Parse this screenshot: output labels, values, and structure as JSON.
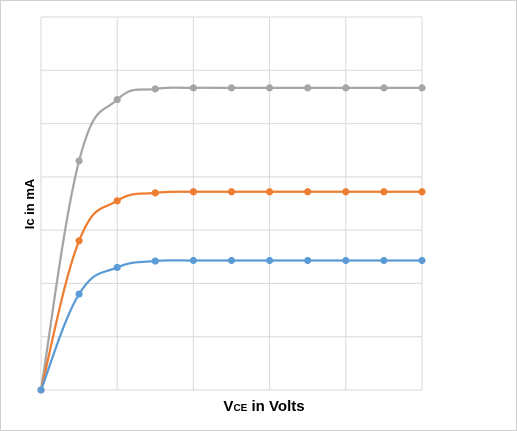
{
  "chart_data": {
    "type": "line",
    "title": "",
    "xlabel_main": "V",
    "xlabel_sub": "CE",
    "xlabel_rest": " in Volts",
    "ylabel": "Ic in mA",
    "x": [
      0,
      1,
      2,
      3,
      4,
      5,
      6,
      7,
      8,
      9,
      10
    ],
    "xlim": [
      0,
      10
    ],
    "ylim": [
      0,
      7
    ],
    "grid": true,
    "smooth": true,
    "series": [
      {
        "color": "#a5a5a5",
        "values": [
          0,
          4.3,
          5.45,
          5.65,
          5.67,
          5.67,
          5.67,
          5.67,
          5.67,
          5.67,
          5.67
        ]
      },
      {
        "color": "#ed7d31",
        "values": [
          0,
          2.8,
          3.55,
          3.7,
          3.72,
          3.72,
          3.72,
          3.72,
          3.72,
          3.72,
          3.72
        ]
      },
      {
        "color": "#5b9bd5",
        "values": [
          0,
          1.8,
          2.3,
          2.42,
          2.43,
          2.43,
          2.43,
          2.43,
          2.43,
          2.43,
          2.43
        ]
      }
    ]
  }
}
